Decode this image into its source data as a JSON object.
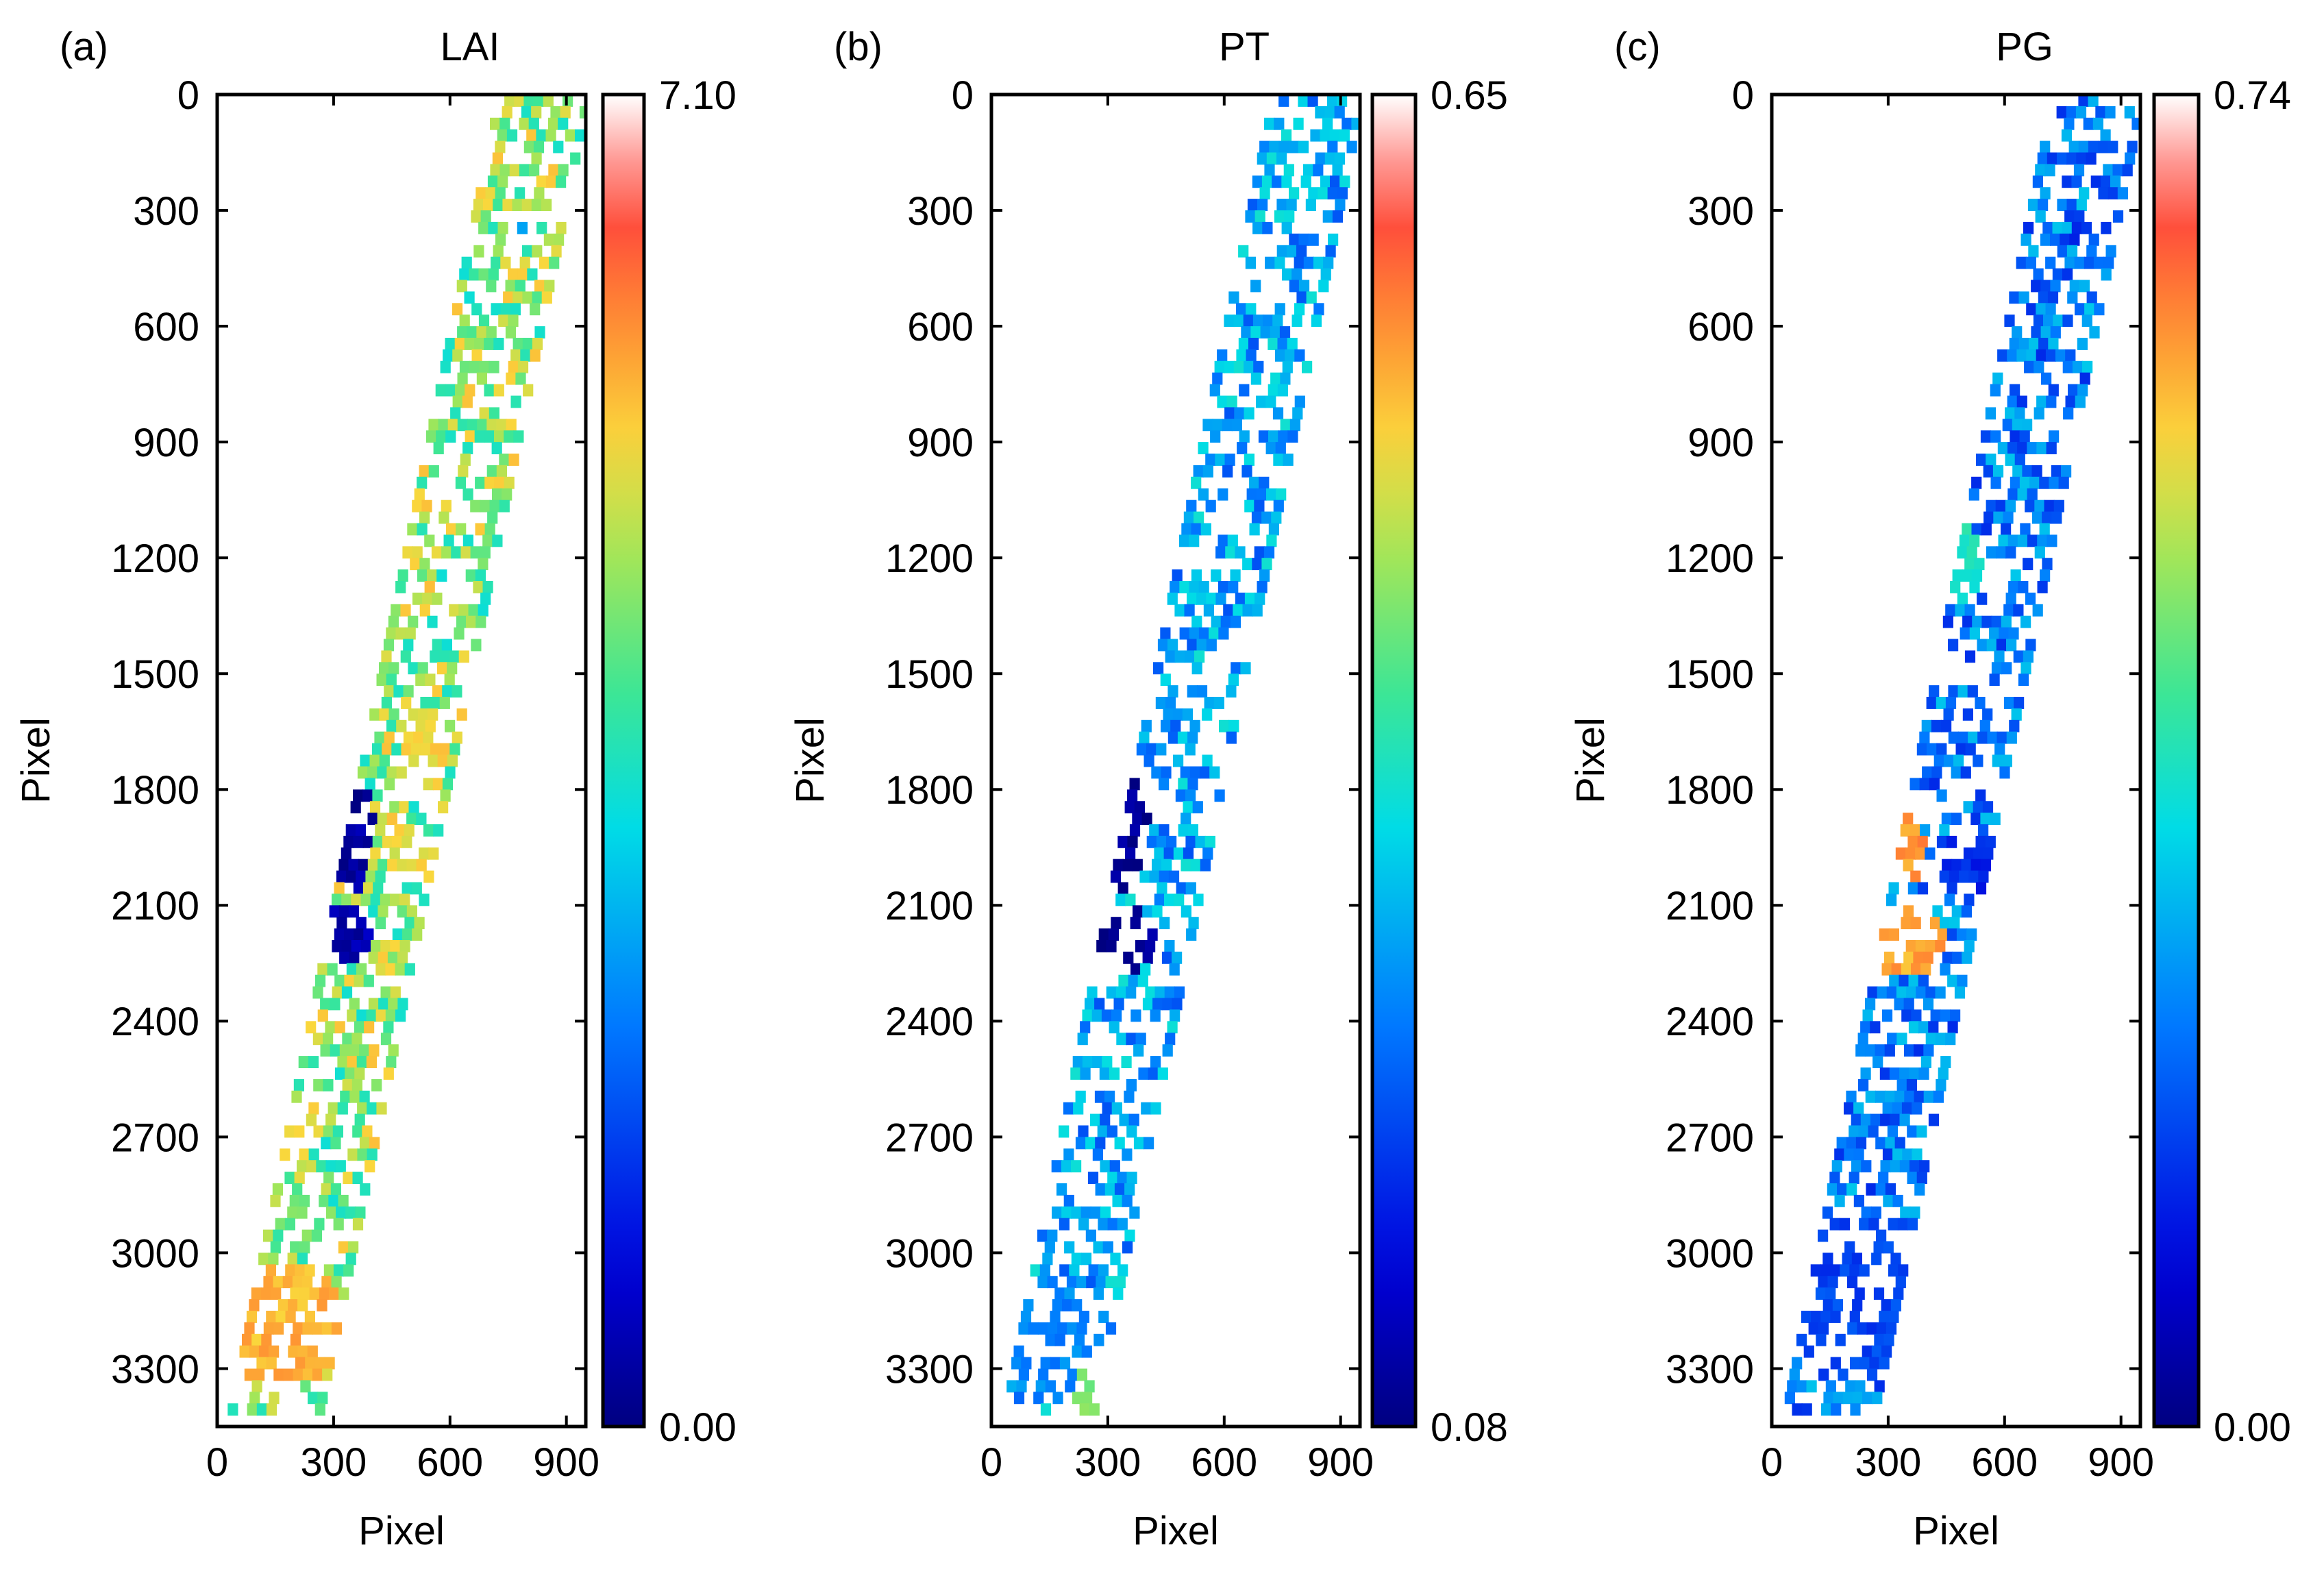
{
  "chart_data": [
    {
      "type": "heatmap",
      "panel_label": "(a)",
      "title": "LAI",
      "xlabel": "Pixel",
      "ylabel": "Pixel",
      "xlim": [
        0,
        950
      ],
      "ylim": [
        3450,
        0
      ],
      "xticks": [
        0,
        300,
        600,
        900
      ],
      "yticks": [
        0,
        300,
        600,
        900,
        1200,
        1500,
        1800,
        2100,
        2400,
        2700,
        3000,
        3300
      ],
      "colorbar": {
        "min_label": "0.00",
        "max_label": "7.10",
        "min": 0.0,
        "max": 7.1
      },
      "field": {
        "base": 0.62,
        "base_amp": 0.15,
        "density": 0.55,
        "patches": [
          {
            "x": 780,
            "y": 340,
            "rx": 30,
            "ry": 40,
            "value": 0.4
          },
          {
            "x": 330,
            "y": 1900,
            "rx": 60,
            "ry": 150,
            "value": 0.04
          },
          {
            "x": 300,
            "y": 2170,
            "rx": 90,
            "ry": 80,
            "value": 0.06
          },
          {
            "x": 160,
            "y": 3170,
            "rx": 150,
            "ry": 170,
            "value": 0.78
          },
          {
            "x": 520,
            "y": 1680,
            "rx": 70,
            "ry": 110,
            "value": 0.74
          },
          {
            "x": 480,
            "y": 1950,
            "rx": 60,
            "ry": 90,
            "value": 0.72
          },
          {
            "x": 220,
            "y": 2900,
            "rx": 80,
            "ry": 90,
            "value": 0.6
          }
        ]
      }
    },
    {
      "type": "heatmap",
      "panel_label": "(b)",
      "title": "PT",
      "xlabel": "Pixel",
      "ylabel": "Pixel",
      "xlim": [
        0,
        950
      ],
      "ylim": [
        3450,
        0
      ],
      "xticks": [
        0,
        300,
        600,
        900
      ],
      "yticks": [
        0,
        300,
        600,
        900,
        1200,
        1500,
        1800,
        2100,
        2400,
        2700,
        3000,
        3300
      ],
      "colorbar": {
        "min_label": "0.08",
        "max_label": "0.65",
        "min": 0.08,
        "max": 0.65
      },
      "field": {
        "base": 0.36,
        "base_amp": 0.12,
        "density": 0.5,
        "patches": [
          {
            "x": 780,
            "y": 340,
            "rx": 30,
            "ry": 40,
            "value": 0.25
          },
          {
            "x": 330,
            "y": 1900,
            "rx": 60,
            "ry": 150,
            "value": 0.02
          },
          {
            "x": 320,
            "y": 2180,
            "rx": 100,
            "ry": 90,
            "value": 0.03
          },
          {
            "x": 150,
            "y": 3200,
            "rx": 150,
            "ry": 170,
            "value": 0.32
          },
          {
            "x": 250,
            "y": 3350,
            "rx": 60,
            "ry": 60,
            "value": 0.6
          }
        ]
      }
    },
    {
      "type": "heatmap",
      "panel_label": "(c)",
      "title": "PG",
      "xlabel": "Pixel",
      "ylabel": "Pixel",
      "xlim": [
        0,
        950
      ],
      "ylim": [
        3450,
        0
      ],
      "xticks": [
        0,
        300,
        600,
        900
      ],
      "yticks": [
        0,
        300,
        600,
        900,
        1200,
        1500,
        1800,
        2100,
        2400,
        2700,
        3000,
        3300
      ],
      "colorbar": {
        "min_label": "0.00",
        "max_label": "0.74",
        "min": 0.0,
        "max": 0.74
      },
      "field": {
        "base": 0.3,
        "base_amp": 0.12,
        "density": 0.55,
        "patches": [
          {
            "x": 780,
            "y": 340,
            "rx": 30,
            "ry": 40,
            "value": 0.18
          },
          {
            "x": 330,
            "y": 1900,
            "rx": 50,
            "ry": 140,
            "value": 0.82
          },
          {
            "x": 340,
            "y": 2180,
            "rx": 110,
            "ry": 90,
            "value": 0.8
          },
          {
            "x": 480,
            "y": 1980,
            "rx": 70,
            "ry": 100,
            "value": 0.18
          },
          {
            "x": 180,
            "y": 3100,
            "rx": 160,
            "ry": 220,
            "value": 0.22
          },
          {
            "x": 450,
            "y": 1200,
            "rx": 80,
            "ry": 120,
            "value": 0.5
          }
        ]
      }
    }
  ]
}
